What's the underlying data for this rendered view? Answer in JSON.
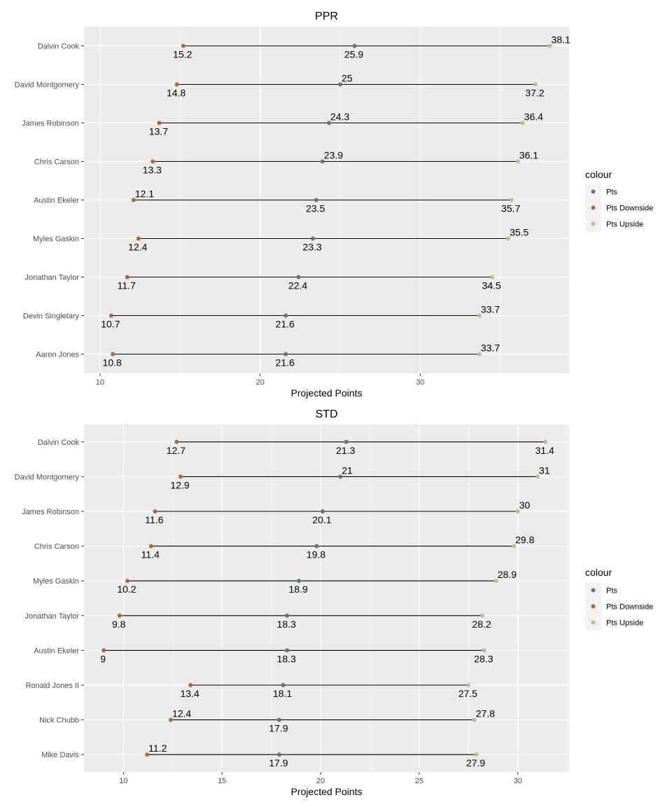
{
  "colors": {
    "panel_bg": "#ebebeb",
    "grid": "#ffffff",
    "segment": "#000000",
    "pts": "#5f7a72",
    "pts_downside": "#b8652e",
    "pts_upside": "#c5bd7b",
    "legend_key_bg": "#f2f2f2"
  },
  "chart_data": [
    {
      "type": "dumbbell",
      "title": "PPR",
      "xlabel": "Projected Points",
      "ylabel": "",
      "xlim": [
        9.0,
        39.3
      ],
      "xticks": [
        10,
        20,
        30
      ],
      "grid": true,
      "legend": {
        "title": "colour",
        "position": "right",
        "entries": [
          "Pts",
          "Pts Downside",
          "Pts Upside"
        ]
      },
      "categories": [
        "Dalvin Cook",
        "David Montgomery",
        "James Robinson",
        "Chris Carson",
        "Austin Ekeler",
        "Myles Gaskin",
        "Jonathan Taylor",
        "Devin Singletary",
        "Aaron Jones"
      ],
      "series": [
        {
          "name": "Pts",
          "values": [
            25.9,
            25,
            24.3,
            23.9,
            23.5,
            23.3,
            22.4,
            21.6,
            21.6
          ]
        },
        {
          "name": "Pts Downside",
          "values": [
            15.2,
            14.8,
            13.7,
            13.3,
            12.1,
            12.4,
            11.7,
            10.7,
            10.8
          ]
        },
        {
          "name": "Pts Upside",
          "values": [
            38.1,
            37.2,
            36.4,
            36.1,
            35.7,
            35.5,
            34.5,
            33.7,
            33.7
          ]
        }
      ]
    },
    {
      "type": "dumbbell",
      "title": "STD",
      "xlabel": "Projected Points",
      "ylabel": "",
      "xlim": [
        8.0,
        32.6
      ],
      "xticks": [
        10,
        15,
        20,
        25,
        30
      ],
      "grid": true,
      "legend": {
        "title": "colour",
        "position": "right",
        "entries": [
          "Pts",
          "Pts Downside",
          "Pts Upside"
        ]
      },
      "categories": [
        "Dalvin Cook",
        "David Montgomery",
        "James Robinson",
        "Chris Carson",
        "Myles Gaskin",
        "Jonathan Taylor",
        "Austin Ekeler",
        "Ronald Jones II",
        "Nick Chubb",
        "Mike Davis"
      ],
      "series": [
        {
          "name": "Pts",
          "values": [
            21.3,
            21,
            20.1,
            19.8,
            18.9,
            18.3,
            18.3,
            18.1,
            17.9,
            17.9
          ]
        },
        {
          "name": "Pts Downside",
          "values": [
            12.7,
            12.9,
            11.6,
            11.4,
            10.2,
            9.8,
            9,
            13.4,
            12.4,
            11.2
          ]
        },
        {
          "name": "Pts Upside",
          "values": [
            31.4,
            31,
            30,
            29.8,
            28.9,
            28.2,
            28.3,
            27.5,
            27.8,
            27.9
          ]
        }
      ]
    }
  ]
}
